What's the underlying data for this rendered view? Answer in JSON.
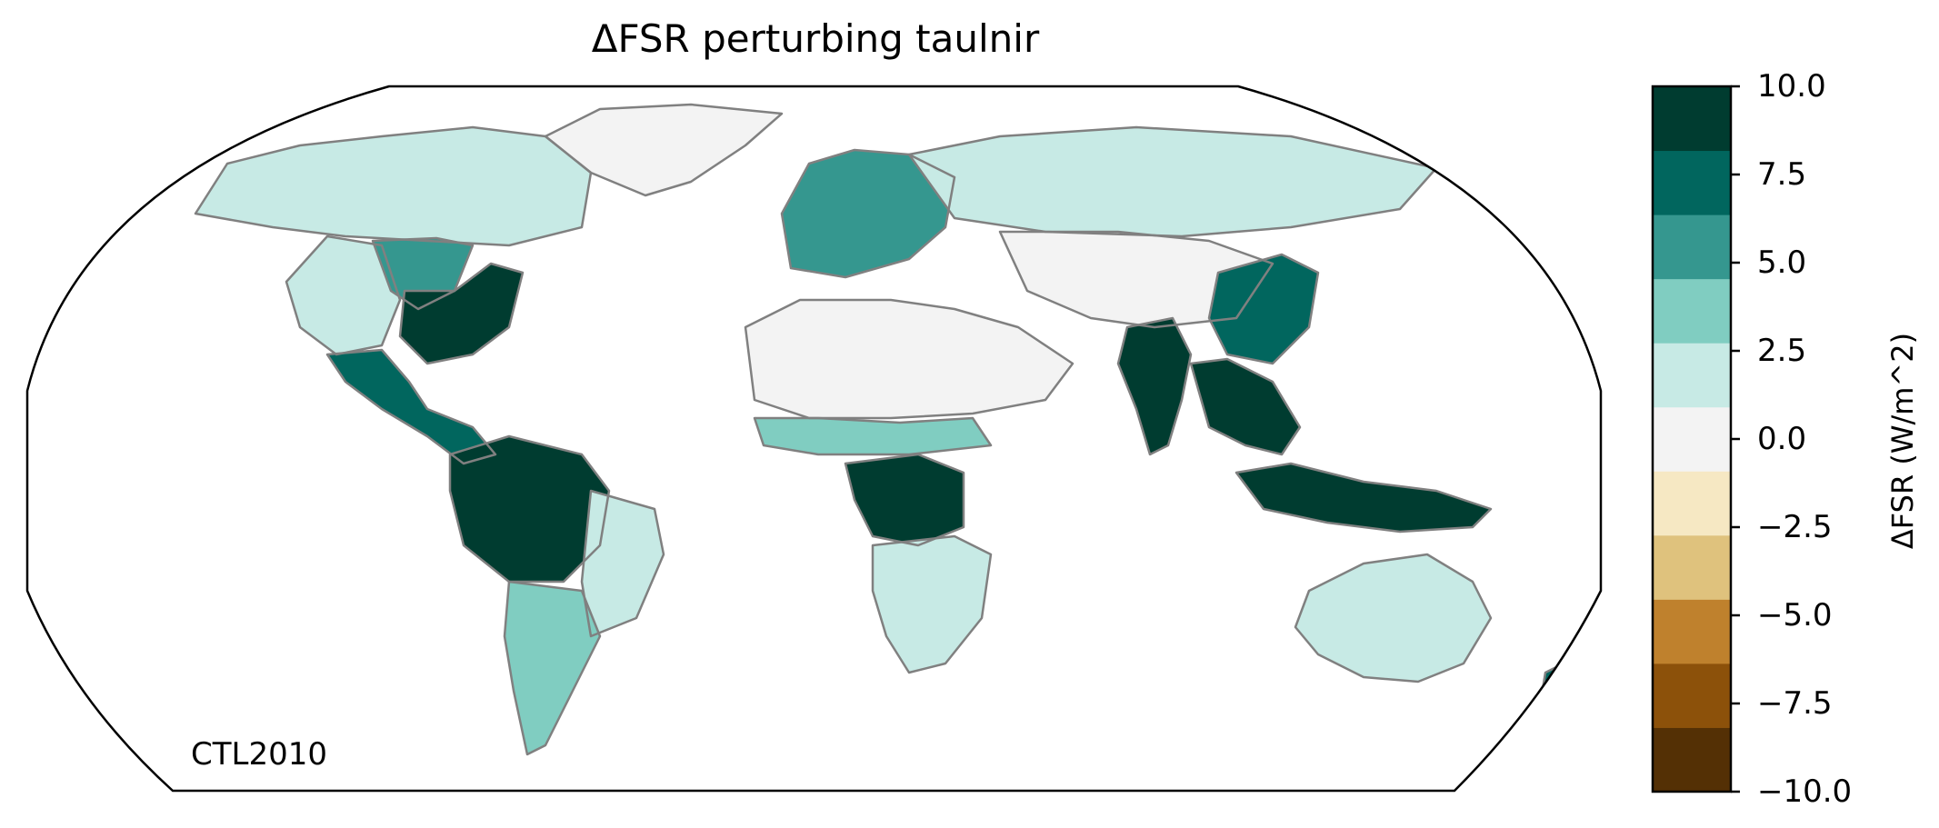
{
  "title": "ΔFSR perturbing taulnir",
  "run_label": "CTL2010",
  "projection": "Robinson",
  "colorbar": {
    "label": "ΔFSR (W/m^2)",
    "min": -10.0,
    "max": 10.0,
    "step": 2.0,
    "ticks": [
      "−10.0",
      "−7.5",
      "−5.0",
      "−2.5",
      "0.0",
      "2.5",
      "5.0",
      "7.5",
      "10.0"
    ],
    "tick_values": [
      -10.0,
      -7.5,
      -5.0,
      -2.5,
      0.0,
      2.5,
      5.0,
      7.5,
      10.0
    ],
    "colors": [
      "#543005",
      "#8c510a",
      "#bf812d",
      "#dfc27d",
      "#f6e8c3",
      "#f3f3f3",
      "#c7eae5",
      "#80cdc1",
      "#35978f",
      "#01665e",
      "#003c30"
    ]
  },
  "colors": {
    "coastline": "#808080",
    "borders": "#c0c0c0",
    "frame": "#000000"
  },
  "chart_data": {
    "type": "heatmap",
    "title": "ΔFSR perturbing taulnir",
    "colorbar_label": "ΔFSR (W/m^2)",
    "value_range": [
      -10,
      10
    ],
    "regions": [
      {
        "name": "Canada / Alaska",
        "value": 1.5
      },
      {
        "name": "Eastern United States",
        "value": 10.0
      },
      {
        "name": "Central United States",
        "value": 5.5
      },
      {
        "name": "Western United States",
        "value": 2.0
      },
      {
        "name": "Mexico / Central America",
        "value": 6.5
      },
      {
        "name": "Amazon Basin",
        "value": 10.0
      },
      {
        "name": "Eastern Brazil",
        "value": 2.5
      },
      {
        "name": "Southern South America",
        "value": 3.0
      },
      {
        "name": "Greenland",
        "value": 0.0
      },
      {
        "name": "Europe",
        "value": 5.0
      },
      {
        "name": "Russia / Siberia",
        "value": 2.5
      },
      {
        "name": "Sahara / Arabia",
        "value": 0.0
      },
      {
        "name": "Sahel",
        "value": 4.5
      },
      {
        "name": "Congo Basin",
        "value": 10.0
      },
      {
        "name": "Southern Africa",
        "value": 2.5
      },
      {
        "name": "Central Asia / Tibet",
        "value": 0.5
      },
      {
        "name": "India",
        "value": 10.0
      },
      {
        "name": "Eastern China",
        "value": 7.5
      },
      {
        "name": "Southeast Asia",
        "value": 10.0
      },
      {
        "name": "Indonesia",
        "value": 10.0
      },
      {
        "name": "Australia",
        "value": 2.0
      },
      {
        "name": "New Zealand",
        "value": 7.5
      }
    ]
  }
}
